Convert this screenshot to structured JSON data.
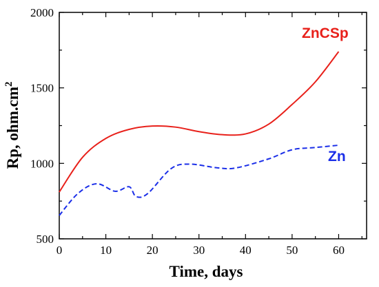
{
  "chart_data": {
    "type": "line",
    "title": "",
    "xlabel": "Time, days",
    "ylabel_main": "Rp, ohm.cm",
    "ylabel_sup": "2",
    "xlim": [
      0,
      66
    ],
    "ylim": [
      500,
      2000
    ],
    "xticks": [
      0,
      10,
      20,
      30,
      40,
      50,
      60
    ],
    "yticks": [
      500,
      1000,
      1500,
      2000
    ],
    "grid": false,
    "legend": "inline labels",
    "series": [
      {
        "name": "ZnCSp",
        "color": "#e8201a",
        "style": "solid",
        "x": [
          0,
          5,
          10,
          15,
          20,
          25,
          30,
          35,
          40,
          45,
          50,
          55,
          60
        ],
        "y": [
          810,
          1040,
          1165,
          1225,
          1247,
          1240,
          1210,
          1190,
          1195,
          1260,
          1390,
          1540,
          1740
        ]
      },
      {
        "name": "Zn",
        "color": "#1a2ee8",
        "style": "dashed",
        "x": [
          0,
          4,
          8,
          12,
          15,
          16.5,
          19,
          24,
          28,
          34,
          38,
          45,
          50,
          55,
          60
        ],
        "y": [
          655,
          800,
          865,
          815,
          845,
          780,
          800,
          965,
          995,
          970,
          970,
          1030,
          1090,
          1105,
          1120
        ]
      }
    ]
  }
}
